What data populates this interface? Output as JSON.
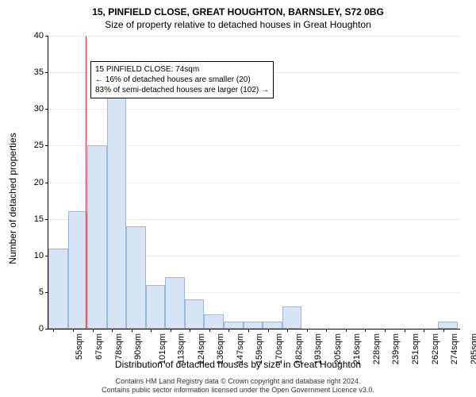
{
  "title": "15, PINFIELD CLOSE, GREAT HOUGHTON, BARNSLEY, S72 0BG",
  "subtitle": "Size of property relative to detached houses in Great Houghton",
  "ylabel": "Number of detached properties",
  "xlabel": "Distribution of detached houses by size in Great Houghton",
  "attribution_line1": "Contains HM Land Registry data © Crown copyright and database right 2024.",
  "attribution_line2": "Contains public sector information licensed under the Open Government Licence v3.0.",
  "annotation": {
    "line1": "15 PINFIELD CLOSE: 74sqm",
    "line2": "← 16% of detached houses are smaller (20)",
    "line3": "83% of semi-detached houses are larger (102) →"
  },
  "chart": {
    "type": "histogram",
    "ylim": [
      0,
      40
    ],
    "ytick_step": 5,
    "bar_fill": "#d6e4f5",
    "bar_border": "#9bb7d9",
    "grid_color": "#eeeeee",
    "vline_color": "#cc3333",
    "vline_x": 74,
    "x_start": 52,
    "x_end": 295,
    "x_tick_start": 55,
    "x_tick_step": 11.5,
    "x_tick_count": 21,
    "x_tick_suffix": "sqm",
    "bin_width": 11.5,
    "values": [
      11,
      16,
      25,
      32,
      14,
      6,
      7,
      4,
      2,
      1,
      1,
      1,
      3,
      0,
      0,
      0,
      0,
      0,
      0,
      0,
      1
    ],
    "title_fontsize": 12,
    "label_fontsize": 12,
    "tick_fontsize": 11,
    "background_color": "#ffffff"
  }
}
